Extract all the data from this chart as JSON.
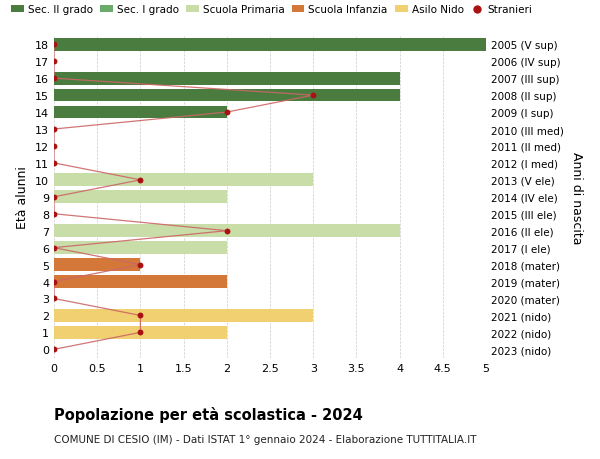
{
  "ages": [
    18,
    17,
    16,
    15,
    14,
    13,
    12,
    11,
    10,
    9,
    8,
    7,
    6,
    5,
    4,
    3,
    2,
    1,
    0
  ],
  "years": [
    "2005 (V sup)",
    "2006 (IV sup)",
    "2007 (III sup)",
    "2008 (II sup)",
    "2009 (I sup)",
    "2010 (III med)",
    "2011 (II med)",
    "2012 (I med)",
    "2013 (V ele)",
    "2014 (IV ele)",
    "2015 (III ele)",
    "2016 (II ele)",
    "2017 (I ele)",
    "2018 (mater)",
    "2019 (mater)",
    "2020 (mater)",
    "2021 (nido)",
    "2022 (nido)",
    "2023 (nido)"
  ],
  "bar_values": [
    5.0,
    0,
    4.0,
    4.0,
    2.0,
    0,
    0,
    0,
    3.0,
    2.0,
    0,
    4.0,
    2.0,
    1.0,
    2.0,
    0,
    3.0,
    2.0,
    0
  ],
  "bar_colors": [
    "#4a7c3f",
    "#4a7c3f",
    "#4a7c3f",
    "#4a7c3f",
    "#4a7c3f",
    "#6aaa6a",
    "#6aaa6a",
    "#6aaa6a",
    "#c8dda8",
    "#c8dda8",
    "#c8dda8",
    "#c8dda8",
    "#c8dda8",
    "#d4783a",
    "#d4783a",
    "#d4783a",
    "#f0d070",
    "#f0d070",
    "#f0d070"
  ],
  "stranieri_values": [
    0,
    0,
    0,
    3.0,
    2.0,
    0,
    0,
    0,
    1.0,
    0,
    0,
    2.0,
    0,
    1.0,
    0,
    0,
    1.0,
    1.0,
    0
  ],
  "stranieri_color": "#aa1111",
  "line_color": "#cc6666",
  "title": "Popolazione per età scolastica - 2024",
  "subtitle": "COMUNE DI CESIO (IM) - Dati ISTAT 1° gennaio 2024 - Elaborazione TUTTITALIA.IT",
  "ylabel_left": "Età alunni",
  "ylabel_right": "Anni di nascita",
  "xlim": [
    0,
    5.0
  ],
  "xticks": [
    0,
    0.5,
    1.0,
    1.5,
    2.0,
    2.5,
    3.0,
    3.5,
    4.0,
    4.5,
    5.0
  ],
  "legend_labels": [
    "Sec. II grado",
    "Sec. I grado",
    "Scuola Primaria",
    "Scuola Infanzia",
    "Asilo Nido",
    "Stranieri"
  ],
  "legend_colors": [
    "#4a7c3f",
    "#6aaa6a",
    "#c8dda8",
    "#d4783a",
    "#f0d070",
    "#aa1111"
  ],
  "bg_color": "#ffffff",
  "bar_height": 0.75,
  "figsize": [
    6.0,
    4.6
  ],
  "dpi": 100
}
